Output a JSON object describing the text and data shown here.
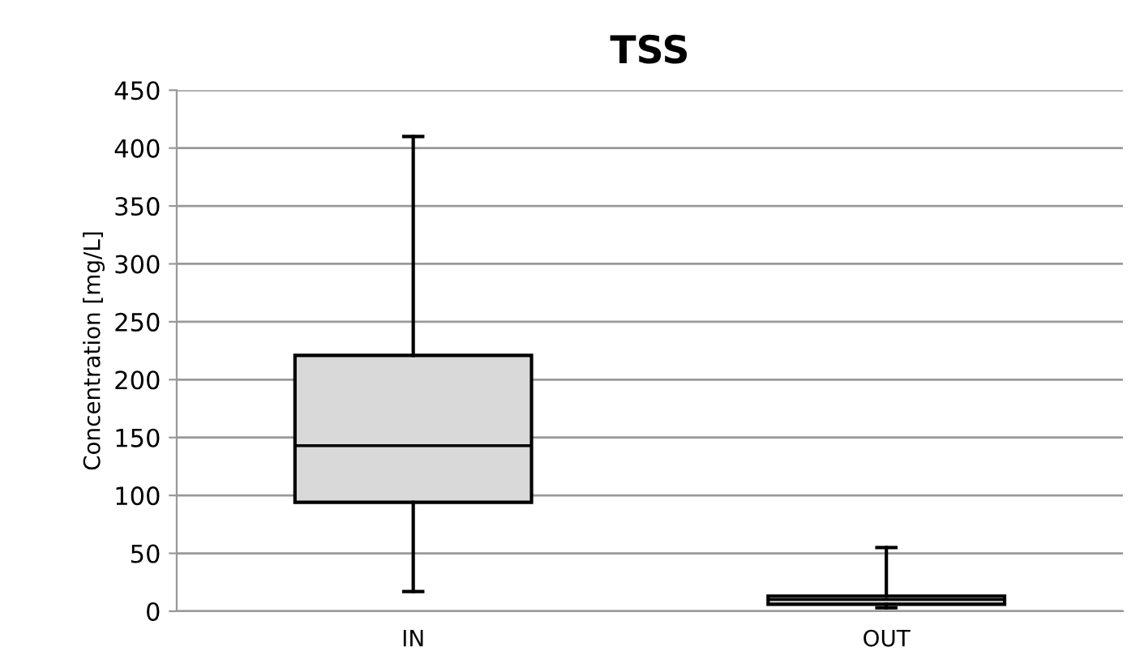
{
  "chart_data": {
    "type": "box",
    "title": "TSS",
    "ylabel": "Concentration [mg/L]",
    "categories": [
      "IN",
      "OUT"
    ],
    "boxes": [
      {
        "low": 17,
        "q1": 94,
        "median": 143,
        "q3": 221,
        "high": 410
      },
      {
        "low": 3,
        "q1": 6,
        "median": 10,
        "q3": 13,
        "high": 55
      }
    ],
    "color": "#d9d9d9",
    "ylim": [
      0,
      450
    ],
    "yticks": [
      0,
      50,
      100,
      150,
      200,
      250,
      300,
      350,
      400,
      450
    ],
    "grid": "y"
  }
}
